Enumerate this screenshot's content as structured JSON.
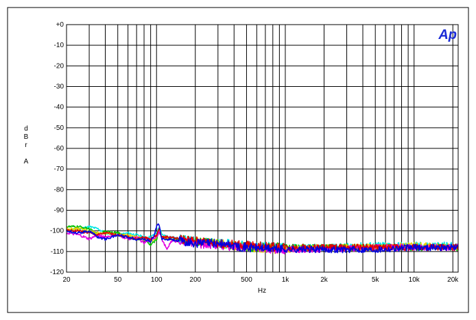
{
  "chart_data": {
    "type": "line",
    "title": "",
    "logo": "Ap",
    "xlabel": "Hz",
    "ylabel_chars": [
      "d",
      "B",
      "r",
      "",
      "A"
    ],
    "xscale": "log",
    "xlim": [
      20,
      22000
    ],
    "ylim": [
      -120,
      0
    ],
    "grid": true,
    "yticks": [
      {
        "value": 0,
        "label": "+0"
      },
      {
        "value": -10,
        "label": "-10"
      },
      {
        "value": -20,
        "label": "-20"
      },
      {
        "value": -30,
        "label": "-30"
      },
      {
        "value": -40,
        "label": "-40"
      },
      {
        "value": -50,
        "label": "-50"
      },
      {
        "value": -60,
        "label": "-60"
      },
      {
        "value": -70,
        "label": "-70"
      },
      {
        "value": -80,
        "label": "-80"
      },
      {
        "value": -90,
        "label": "-90"
      },
      {
        "value": -100,
        "label": "-100"
      },
      {
        "value": -110,
        "label": "-110"
      },
      {
        "value": -120,
        "label": "-120"
      }
    ],
    "xticks": [
      {
        "value": 20,
        "label": "20"
      },
      {
        "value": 50,
        "label": "50"
      },
      {
        "value": 100,
        "label": "100"
      },
      {
        "value": 200,
        "label": "200"
      },
      {
        "value": 500,
        "label": "500"
      },
      {
        "value": 1000,
        "label": "1k"
      },
      {
        "value": 2000,
        "label": "2k"
      },
      {
        "value": 5000,
        "label": "5k"
      },
      {
        "value": 10000,
        "label": "10k"
      },
      {
        "value": 20000,
        "label": "20k"
      }
    ],
    "xgrid": [
      20,
      30,
      40,
      50,
      60,
      70,
      80,
      90,
      100,
      200,
      300,
      400,
      500,
      600,
      700,
      800,
      900,
      1000,
      2000,
      3000,
      4000,
      5000,
      6000,
      7000,
      8000,
      9000,
      10000,
      20000
    ],
    "series": [
      {
        "color": "#00e5e5",
        "points": [
          [
            20,
            -100
          ],
          [
            25,
            -99
          ],
          [
            30,
            -98
          ],
          [
            35,
            -99
          ],
          [
            40,
            -101
          ],
          [
            50,
            -102
          ],
          [
            60,
            -101
          ],
          [
            70,
            -102
          ],
          [
            80,
            -103
          ],
          [
            90,
            -103
          ],
          [
            100,
            -101
          ],
          [
            105,
            -98
          ],
          [
            110,
            -102
          ],
          [
            130,
            -103
          ],
          [
            150,
            -104
          ],
          [
            200,
            -105
          ],
          [
            300,
            -106
          ],
          [
            500,
            -107
          ],
          [
            1000,
            -108
          ],
          [
            2000,
            -108
          ],
          [
            5000,
            -107
          ],
          [
            10000,
            -107
          ],
          [
            20000,
            -107
          ],
          [
            22000,
            -108
          ]
        ]
      },
      {
        "color": "#00c000",
        "points": [
          [
            20,
            -98
          ],
          [
            25,
            -98
          ],
          [
            30,
            -99
          ],
          [
            35,
            -102
          ],
          [
            40,
            -100
          ],
          [
            50,
            -101
          ],
          [
            60,
            -103
          ],
          [
            70,
            -104
          ],
          [
            80,
            -104
          ],
          [
            90,
            -107
          ],
          [
            100,
            -104
          ],
          [
            105,
            -100
          ],
          [
            110,
            -103
          ],
          [
            130,
            -104
          ],
          [
            150,
            -104
          ],
          [
            200,
            -105
          ],
          [
            300,
            -106
          ],
          [
            500,
            -108
          ],
          [
            1000,
            -108
          ],
          [
            2000,
            -108
          ],
          [
            5000,
            -108
          ],
          [
            10000,
            -108
          ],
          [
            20000,
            -108
          ],
          [
            22000,
            -108
          ]
        ]
      },
      {
        "color": "#e8d000",
        "points": [
          [
            20,
            -99
          ],
          [
            25,
            -99
          ],
          [
            30,
            -100
          ],
          [
            35,
            -101
          ],
          [
            40,
            -101
          ],
          [
            50,
            -102
          ],
          [
            60,
            -102
          ],
          [
            70,
            -103
          ],
          [
            80,
            -104
          ],
          [
            90,
            -105
          ],
          [
            100,
            -103
          ],
          [
            105,
            -99
          ],
          [
            110,
            -103
          ],
          [
            130,
            -104
          ],
          [
            150,
            -105
          ],
          [
            200,
            -105
          ],
          [
            300,
            -106
          ],
          [
            500,
            -108
          ],
          [
            1000,
            -109
          ],
          [
            2000,
            -108
          ],
          [
            5000,
            -108
          ],
          [
            10000,
            -107
          ],
          [
            20000,
            -108
          ],
          [
            22000,
            -108
          ]
        ]
      },
      {
        "color": "#e000e0",
        "points": [
          [
            20,
            -101
          ],
          [
            25,
            -102
          ],
          [
            30,
            -104
          ],
          [
            35,
            -102
          ],
          [
            40,
            -103
          ],
          [
            50,
            -102
          ],
          [
            60,
            -104
          ],
          [
            70,
            -103
          ],
          [
            80,
            -106
          ],
          [
            90,
            -104
          ],
          [
            100,
            -103
          ],
          [
            105,
            -100
          ],
          [
            110,
            -104
          ],
          [
            120,
            -109
          ],
          [
            130,
            -105
          ],
          [
            150,
            -105
          ],
          [
            200,
            -106
          ],
          [
            300,
            -107
          ],
          [
            500,
            -108
          ],
          [
            1000,
            -109
          ],
          [
            2000,
            -109
          ],
          [
            5000,
            -108
          ],
          [
            10000,
            -108
          ],
          [
            20000,
            -108
          ],
          [
            22000,
            -108
          ]
        ]
      },
      {
        "color": "#e00000",
        "points": [
          [
            20,
            -100
          ],
          [
            25,
            -100
          ],
          [
            30,
            -101
          ],
          [
            35,
            -102
          ],
          [
            40,
            -101
          ],
          [
            50,
            -102
          ],
          [
            60,
            -103
          ],
          [
            70,
            -104
          ],
          [
            80,
            -103
          ],
          [
            90,
            -104
          ],
          [
            100,
            -102
          ],
          [
            105,
            -99
          ],
          [
            110,
            -103
          ],
          [
            130,
            -103
          ],
          [
            150,
            -104
          ],
          [
            200,
            -105
          ],
          [
            300,
            -106
          ],
          [
            500,
            -107
          ],
          [
            1000,
            -108
          ],
          [
            2000,
            -108
          ],
          [
            5000,
            -108
          ],
          [
            10000,
            -108
          ],
          [
            20000,
            -108
          ],
          [
            22000,
            -108
          ]
        ]
      },
      {
        "color": "#0000e0",
        "points": [
          [
            20,
            -100
          ],
          [
            25,
            -101
          ],
          [
            30,
            -100
          ],
          [
            35,
            -103
          ],
          [
            40,
            -104
          ],
          [
            50,
            -102
          ],
          [
            60,
            -103
          ],
          [
            70,
            -104
          ],
          [
            80,
            -104
          ],
          [
            90,
            -105
          ],
          [
            95,
            -103
          ],
          [
            100,
            -98
          ],
          [
            103,
            -96
          ],
          [
            106,
            -99
          ],
          [
            110,
            -104
          ],
          [
            130,
            -104
          ],
          [
            150,
            -105
          ],
          [
            200,
            -106
          ],
          [
            300,
            -106
          ],
          [
            500,
            -108
          ],
          [
            1000,
            -109
          ],
          [
            2000,
            -109
          ],
          [
            5000,
            -109
          ],
          [
            10000,
            -108
          ],
          [
            20000,
            -108
          ],
          [
            22000,
            -108
          ]
        ]
      }
    ]
  }
}
